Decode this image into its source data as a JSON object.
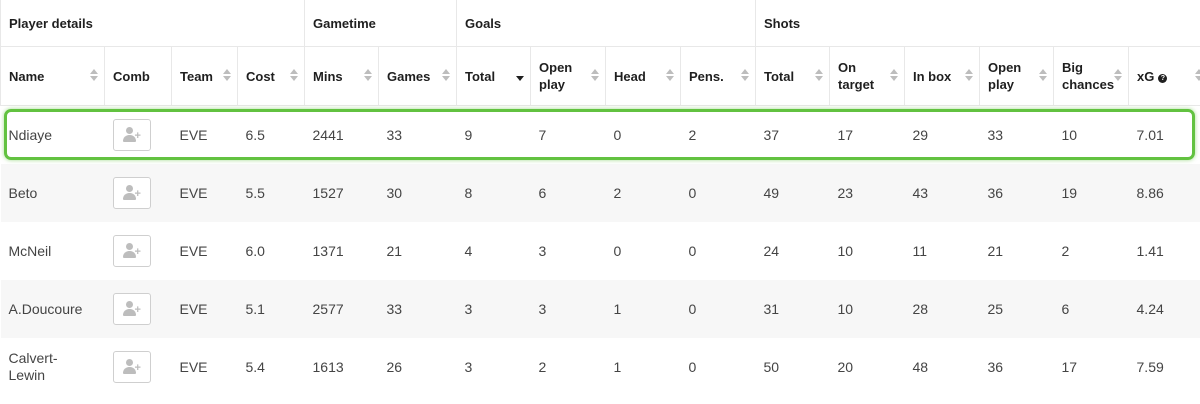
{
  "groups": [
    {
      "label": "Player details",
      "span": 4
    },
    {
      "label": "Gametime",
      "span": 2
    },
    {
      "label": "Goals",
      "span": 4
    },
    {
      "label": "Shots",
      "span": 6
    }
  ],
  "columns": [
    {
      "key": "name",
      "label": "Name",
      "sortable": true
    },
    {
      "key": "comb",
      "label": "Comb",
      "sortable": false
    },
    {
      "key": "team",
      "label": "Team",
      "sortable": true
    },
    {
      "key": "cost",
      "label": "Cost",
      "sortable": true
    },
    {
      "key": "mins",
      "label": "Mins",
      "sortable": true
    },
    {
      "key": "games",
      "label": "Games",
      "sortable": true
    },
    {
      "key": "goals_total",
      "label": "Total",
      "sortable": true,
      "active_sort": "desc"
    },
    {
      "key": "goals_open",
      "label": "Open play",
      "sortable": true
    },
    {
      "key": "head",
      "label": "Head",
      "sortable": true
    },
    {
      "key": "pens",
      "label": "Pens.",
      "sortable": true
    },
    {
      "key": "shots_total",
      "label": "Total",
      "sortable": true
    },
    {
      "key": "on_target",
      "label": "On target",
      "sortable": true
    },
    {
      "key": "in_box",
      "label": "In box",
      "sortable": true
    },
    {
      "key": "shots_open",
      "label": "Open play",
      "sortable": true
    },
    {
      "key": "big_chances",
      "label": "Big chances",
      "sortable": true
    },
    {
      "key": "xg",
      "label": "xG",
      "sortable": true,
      "info": true
    }
  ],
  "rows": [
    {
      "name": "Ndiaye",
      "team": "EVE",
      "cost": "6.5",
      "mins": "2441",
      "games": "33",
      "goals_total": "9",
      "goals_open": "7",
      "head": "0",
      "pens": "2",
      "shots_total": "37",
      "on_target": "17",
      "in_box": "29",
      "shots_open": "33",
      "big_chances": "10",
      "xg": "7.01",
      "highlighted": true
    },
    {
      "name": "Beto",
      "team": "EVE",
      "cost": "5.5",
      "mins": "1527",
      "games": "30",
      "goals_total": "8",
      "goals_open": "6",
      "head": "2",
      "pens": "0",
      "shots_total": "49",
      "on_target": "23",
      "in_box": "43",
      "shots_open": "36",
      "big_chances": "19",
      "xg": "8.86"
    },
    {
      "name": "McNeil",
      "team": "EVE",
      "cost": "6.0",
      "mins": "1371",
      "games": "21",
      "goals_total": "4",
      "goals_open": "3",
      "head": "0",
      "pens": "0",
      "shots_total": "24",
      "on_target": "10",
      "in_box": "11",
      "shots_open": "21",
      "big_chances": "2",
      "xg": "1.41"
    },
    {
      "name": "A.Doucoure",
      "team": "EVE",
      "cost": "5.1",
      "mins": "2577",
      "games": "33",
      "goals_total": "3",
      "goals_open": "3",
      "head": "1",
      "pens": "0",
      "shots_total": "31",
      "on_target": "10",
      "in_box": "28",
      "shots_open": "25",
      "big_chances": "6",
      "xg": "4.24"
    },
    {
      "name": "Calvert-Lewin",
      "team": "EVE",
      "cost": "5.4",
      "mins": "1613",
      "games": "26",
      "goals_total": "3",
      "goals_open": "2",
      "head": "1",
      "pens": "0",
      "shots_total": "50",
      "on_target": "20",
      "in_box": "48",
      "shots_open": "36",
      "big_chances": "17",
      "xg": "7.59"
    }
  ],
  "icons": {
    "comb_button": "add-player-icon",
    "sort": "sort-arrows-icon",
    "info": "info-icon"
  },
  "colors": {
    "highlight": "#62c240",
    "alt_row": "#f7f7f7"
  }
}
